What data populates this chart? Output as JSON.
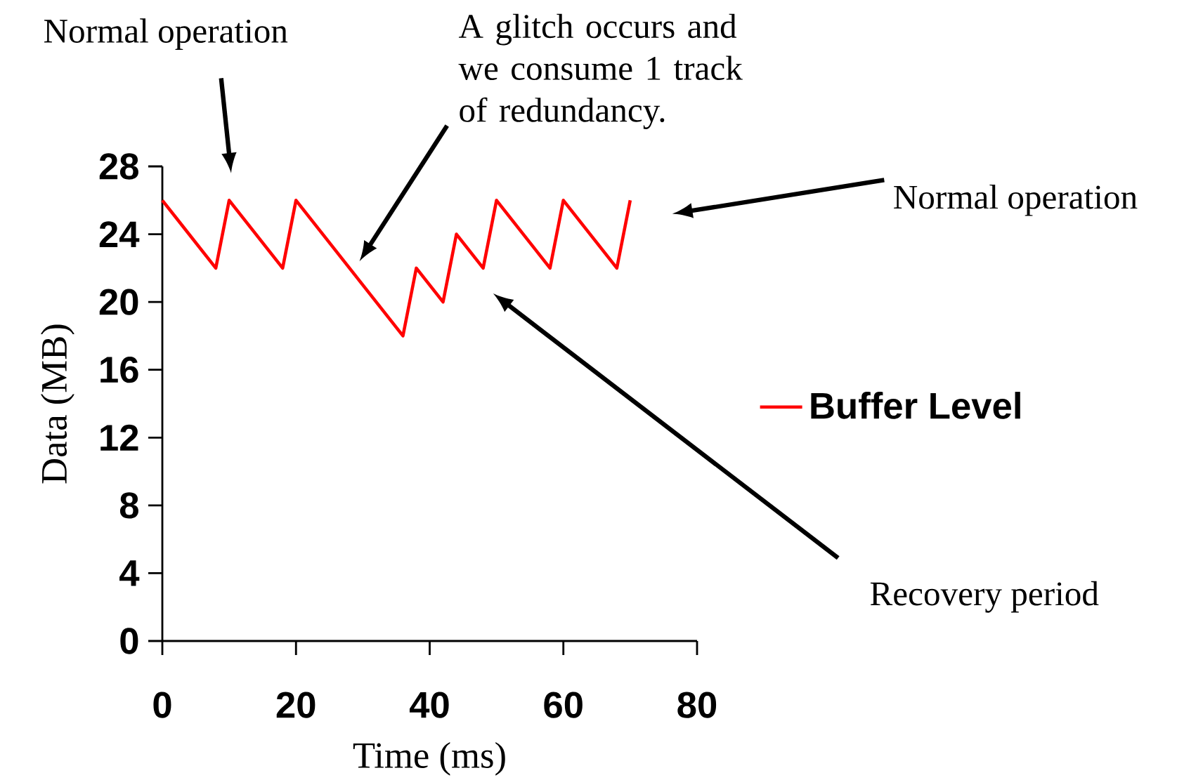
{
  "chart_data": {
    "type": "line",
    "xlabel": "Time (ms)",
    "ylabel": "Data (MB)",
    "x": [
      0,
      8,
      10,
      18,
      20,
      36,
      38,
      42,
      44,
      48,
      50,
      58,
      60,
      68,
      70
    ],
    "series": [
      {
        "name": "Buffer Level",
        "color": "#ff0000",
        "values": [
          26,
          22,
          26,
          22,
          26,
          18,
          22,
          20,
          24,
          22,
          26,
          22,
          26,
          22,
          26
        ]
      }
    ],
    "xlim": [
      0,
      80
    ],
    "ylim": [
      0,
      28
    ],
    "xticks": [
      0,
      20,
      40,
      60,
      80
    ],
    "yticks": [
      0,
      4,
      8,
      12,
      16,
      20,
      24,
      28
    ],
    "legend": "right",
    "grid": false,
    "marker": "none",
    "line_style": "solid",
    "annotations": [
      "Normal operation",
      "A glitch occurs and we consume 1 track of redundancy.",
      "Normal operation",
      "Recovery period"
    ]
  }
}
